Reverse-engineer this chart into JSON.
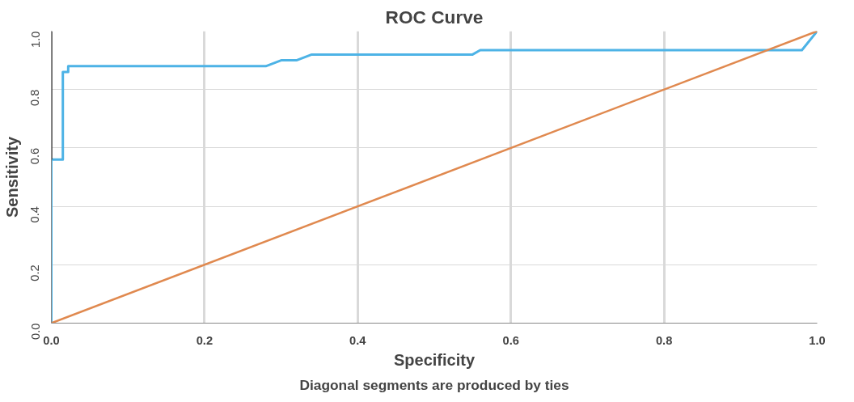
{
  "chart_data": {
    "type": "line",
    "title": "ROC Curve",
    "xlabel": "Specificity",
    "ylabel": "Sensitivity",
    "annotations": [
      "Diagonal segments are produced by ties"
    ],
    "series": [
      {
        "color": "#4db3e6",
        "x": [
          0,
          0,
          0.015,
          0.015,
          0.022,
          0.022,
          0.28,
          0.3,
          0.32,
          0.34,
          0.55,
          0.56,
          0.98,
          1.0
        ],
        "values": [
          0,
          0.56,
          0.56,
          0.86,
          0.86,
          0.88,
          0.88,
          0.9,
          0.9,
          0.92,
          0.92,
          0.935,
          0.935,
          1.0
        ]
      },
      {
        "color": "#333333",
        "x": [
          0,
          0
        ],
        "values": [
          0.56,
          1.0
        ]
      },
      {
        "color": "#e0894f",
        "x": [
          0,
          1
        ],
        "values": [
          0,
          1
        ]
      }
    ],
    "xlim": [
      0,
      1
    ],
    "ylim": [
      0,
      1
    ],
    "xticks": [
      {
        "value": 0,
        "label": "0.0"
      },
      0.2,
      0.4,
      0.6,
      0.8,
      {
        "value": 1,
        "label": "1.0"
      }
    ],
    "yticks": [
      {
        "value": 0,
        "label": "0.0"
      },
      0.2,
      0.4,
      0.6,
      0.8,
      {
        "value": 1,
        "label": "1.0"
      }
    ],
    "grid": true,
    "marker": "none",
    "line_style": "solid"
  }
}
